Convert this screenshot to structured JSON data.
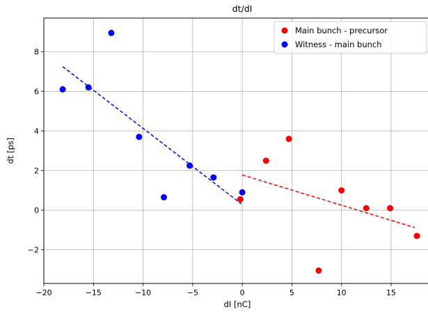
{
  "chart_data": {
    "type": "scatter",
    "title": "dt/dI",
    "xlabel": "dI [nC]",
    "ylabel": "dt [ps]",
    "xlim": [
      -20,
      19
    ],
    "ylim": [
      -3.7,
      9.7
    ],
    "xticks": [
      -20,
      -15,
      -10,
      -5,
      0,
      5,
      10,
      15
    ],
    "yticks": [
      -2,
      0,
      2,
      4,
      6,
      8
    ],
    "xtick_labels": [
      "−20",
      "−15",
      "−10",
      "−5",
      "0",
      "5",
      "10",
      "15"
    ],
    "ytick_labels": [
      "−2",
      "0",
      "2",
      "4",
      "6",
      "8"
    ],
    "grid": true,
    "legend_position": "top-right",
    "series": [
      {
        "name": "Main bunch - precursor",
        "color": "#ff0000",
        "points": [
          [
            -0.2,
            0.55
          ],
          [
            2.4,
            2.5
          ],
          [
            4.7,
            3.6
          ],
          [
            7.7,
            -3.05
          ],
          [
            10.0,
            1.0
          ],
          [
            12.5,
            0.1
          ],
          [
            14.9,
            0.1
          ],
          [
            17.6,
            -1.3
          ]
        ],
        "fit": [
          [
            0.0,
            1.78
          ],
          [
            17.4,
            -0.88
          ]
        ]
      },
      {
        "name": "Witness - main bunch",
        "color": "#0000ff",
        "points": [
          [
            -18.1,
            6.1
          ],
          [
            -15.5,
            6.2
          ],
          [
            -13.2,
            8.95
          ],
          [
            -10.4,
            3.7
          ],
          [
            -7.9,
            0.65
          ],
          [
            -5.3,
            2.25
          ],
          [
            -2.9,
            1.65
          ],
          [
            0.0,
            0.9
          ]
        ],
        "fit": [
          [
            -18.1,
            7.25
          ],
          [
            -0.1,
            0.32
          ]
        ]
      }
    ]
  }
}
